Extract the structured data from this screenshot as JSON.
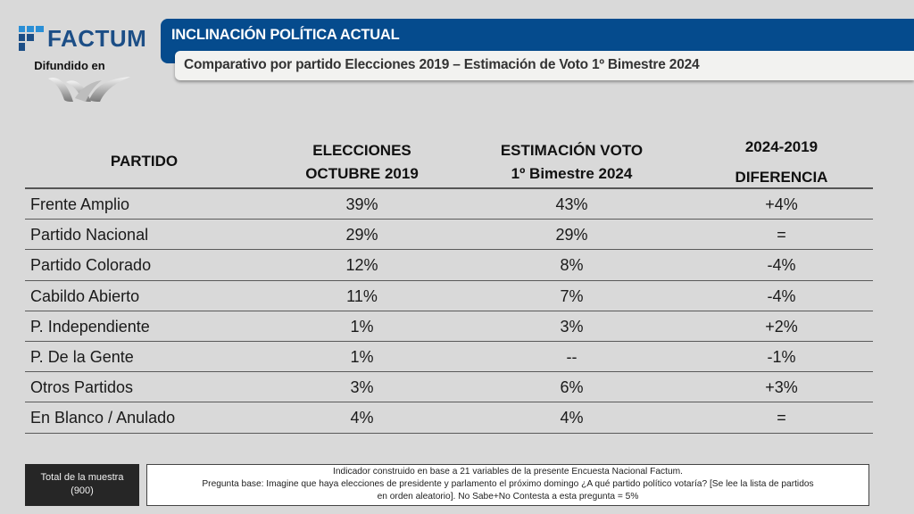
{
  "brand": {
    "name": "FACTUM",
    "broadcast_label": "Difundido en",
    "brand_color": "#1c4e86"
  },
  "header": {
    "title": "INCLINACIÓN POLÍTICA ACTUAL",
    "subtitle": "Comparativo por partido Elecciones 2019 – Estimación de Voto 1º Bimestre 2024",
    "accent_color": "#054b8d"
  },
  "table": {
    "columns": {
      "partido": "PARTIDO",
      "elecciones_line1": "ELECCIONES",
      "elecciones_line2": "OCTUBRE 2019",
      "estimacion_line1": "ESTIMACIÓN VOTO",
      "estimacion_line2": "1º Bimestre 2024",
      "diferencia_line1": "2024-2019",
      "diferencia_line2": "DIFERENCIA"
    },
    "rows": [
      {
        "partido": "Frente Amplio",
        "elecciones_2019": "39%",
        "estimacion_2024": "43%",
        "diferencia": "+4%"
      },
      {
        "partido": "Partido Nacional",
        "elecciones_2019": "29%",
        "estimacion_2024": "29%",
        "diferencia": "="
      },
      {
        "partido": "Partido Colorado",
        "elecciones_2019": "12%",
        "estimacion_2024": "8%",
        "diferencia": "-4%"
      },
      {
        "partido": "Cabildo Abierto",
        "elecciones_2019": "11%",
        "estimacion_2024": "7%",
        "diferencia": "-4%"
      },
      {
        "partido": "P. Independiente",
        "elecciones_2019": "1%",
        "estimacion_2024": "3%",
        "diferencia": "+2%"
      },
      {
        "partido": "P. De la Gente",
        "elecciones_2019": "1%",
        "estimacion_2024": "--",
        "diferencia": "-1%"
      },
      {
        "partido": "Otros Partidos",
        "elecciones_2019": "3%",
        "estimacion_2024": "6%",
        "diferencia": "+3%"
      },
      {
        "partido": "En Blanco / Anulado",
        "elecciones_2019": "4%",
        "estimacion_2024": "4%",
        "diferencia": "="
      }
    ]
  },
  "footer": {
    "sample_label": "Total de la muestra",
    "sample_size": "(900)",
    "note_line1": "Indicador construido en base a 21 variables de la presente Encuesta Nacional Factum.",
    "note_line2": "Pregunta base: Imagine que haya elecciones de presidente y parlamento el próximo domingo ¿A qué partido político votaría? [Se lee la lista de partidos",
    "note_line3": "en orden aleatorio]. No Sabe+No Contesta a esta pregunta = 5%"
  }
}
